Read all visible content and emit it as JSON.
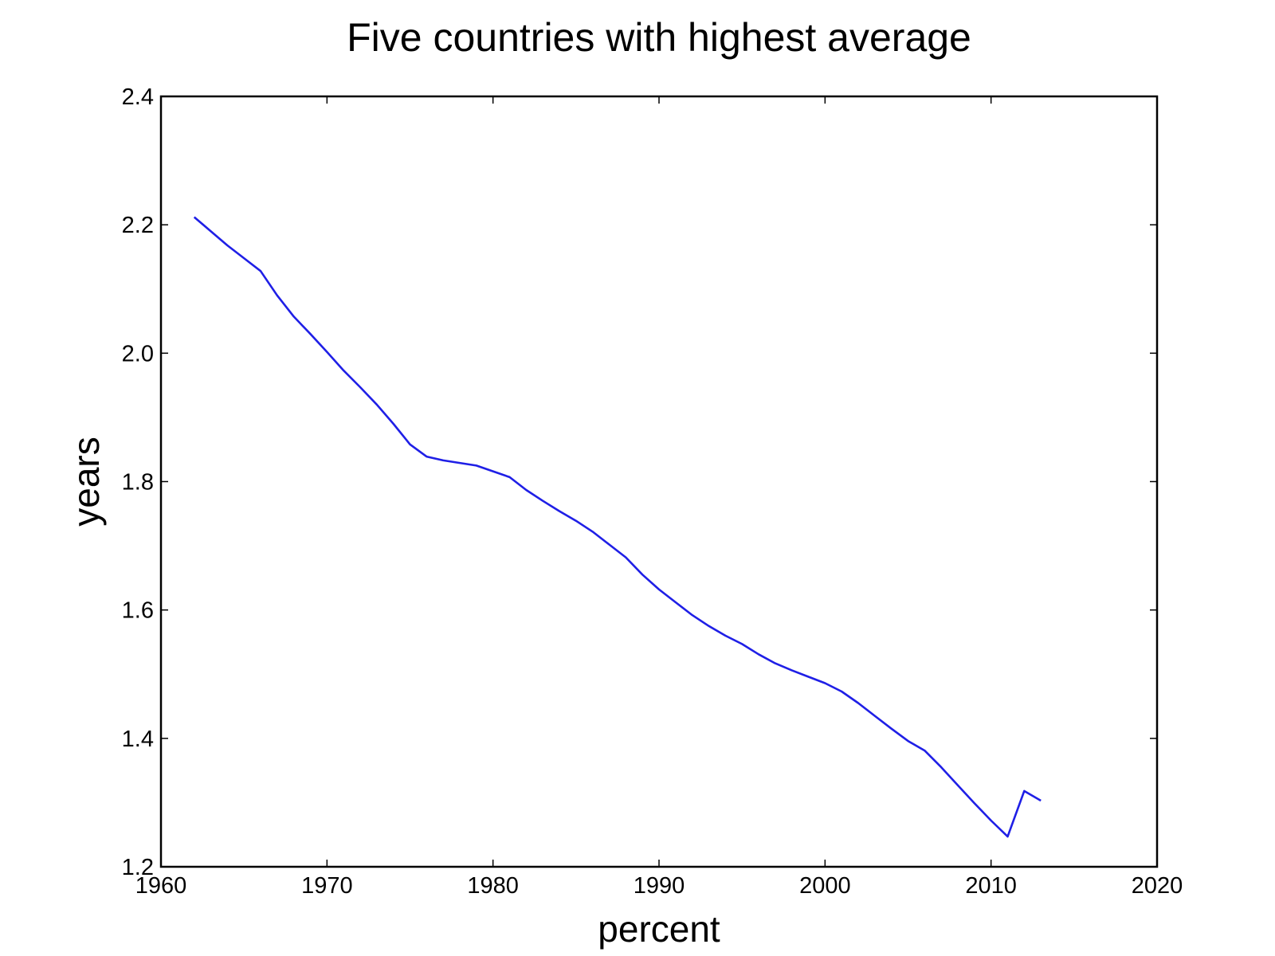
{
  "chart_data": {
    "type": "line",
    "title": "Five countries with highest average",
    "xlabel": "percent",
    "ylabel": "years",
    "xlim": [
      1960,
      2020
    ],
    "ylim": [
      1.2,
      2.4
    ],
    "xticks": [
      1960,
      1970,
      1980,
      1990,
      2000,
      2010,
      2020
    ],
    "xtick_labels": [
      "1960",
      "1970",
      "1980",
      "1990",
      "2000",
      "2010",
      "2020"
    ],
    "yticks": [
      1.2,
      1.4,
      1.6,
      1.8,
      2.0,
      2.2,
      2.4
    ],
    "ytick_labels": [
      "1.2",
      "1.4",
      "1.6",
      "1.8",
      "2.0",
      "2.2",
      "2.4"
    ],
    "grid": false,
    "legend": "none",
    "series": [
      {
        "color": "#1f1fe6",
        "x": [
          1962,
          1963,
          1964,
          1965,
          1966,
          1967,
          1968,
          1969,
          1970,
          1971,
          1972,
          1973,
          1974,
          1975,
          1976,
          1977,
          1978,
          1979,
          1980,
          1981,
          1982,
          1983,
          1984,
          1985,
          1986,
          1987,
          1988,
          1989,
          1990,
          1991,
          1992,
          1993,
          1994,
          1995,
          1996,
          1997,
          1998,
          1999,
          2000,
          2001,
          2002,
          2003,
          2004,
          2005,
          2006,
          2007,
          2008,
          2009,
          2010,
          2011,
          2012,
          2013
        ],
        "y": [
          2.212,
          2.19,
          2.168,
          2.148,
          2.128,
          2.09,
          2.057,
          2.03,
          2.002,
          1.973,
          1.947,
          1.92,
          1.89,
          1.858,
          1.839,
          1.833,
          1.829,
          1.825,
          1.816,
          1.807,
          1.787,
          1.77,
          1.754,
          1.739,
          1.722,
          1.702,
          1.682,
          1.655,
          1.632,
          1.612,
          1.592,
          1.575,
          1.56,
          1.547,
          1.531,
          1.517,
          1.506,
          1.496,
          1.486,
          1.473,
          1.455,
          1.435,
          1.415,
          1.396,
          1.381,
          1.355,
          1.327,
          1.299,
          1.272,
          1.247,
          1.318,
          1.303
        ]
      }
    ]
  }
}
